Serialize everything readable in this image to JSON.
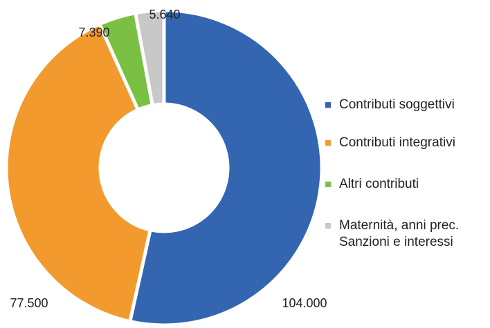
{
  "chart_data": {
    "type": "donut",
    "categories": [
      "Contributi soggettivi",
      "Contributi integrativi",
      "Altri contributi",
      "Maternità, anni prec. Sanzioni e interessi"
    ],
    "values": [
      104000,
      77500,
      7390,
      5640
    ],
    "value_labels": [
      "104.000",
      "77.500",
      "7.390",
      "5.640"
    ],
    "colors": [
      "#3465b0",
      "#f39a2e",
      "#7ac143",
      "#c8c8c8"
    ],
    "legend": "right"
  }
}
